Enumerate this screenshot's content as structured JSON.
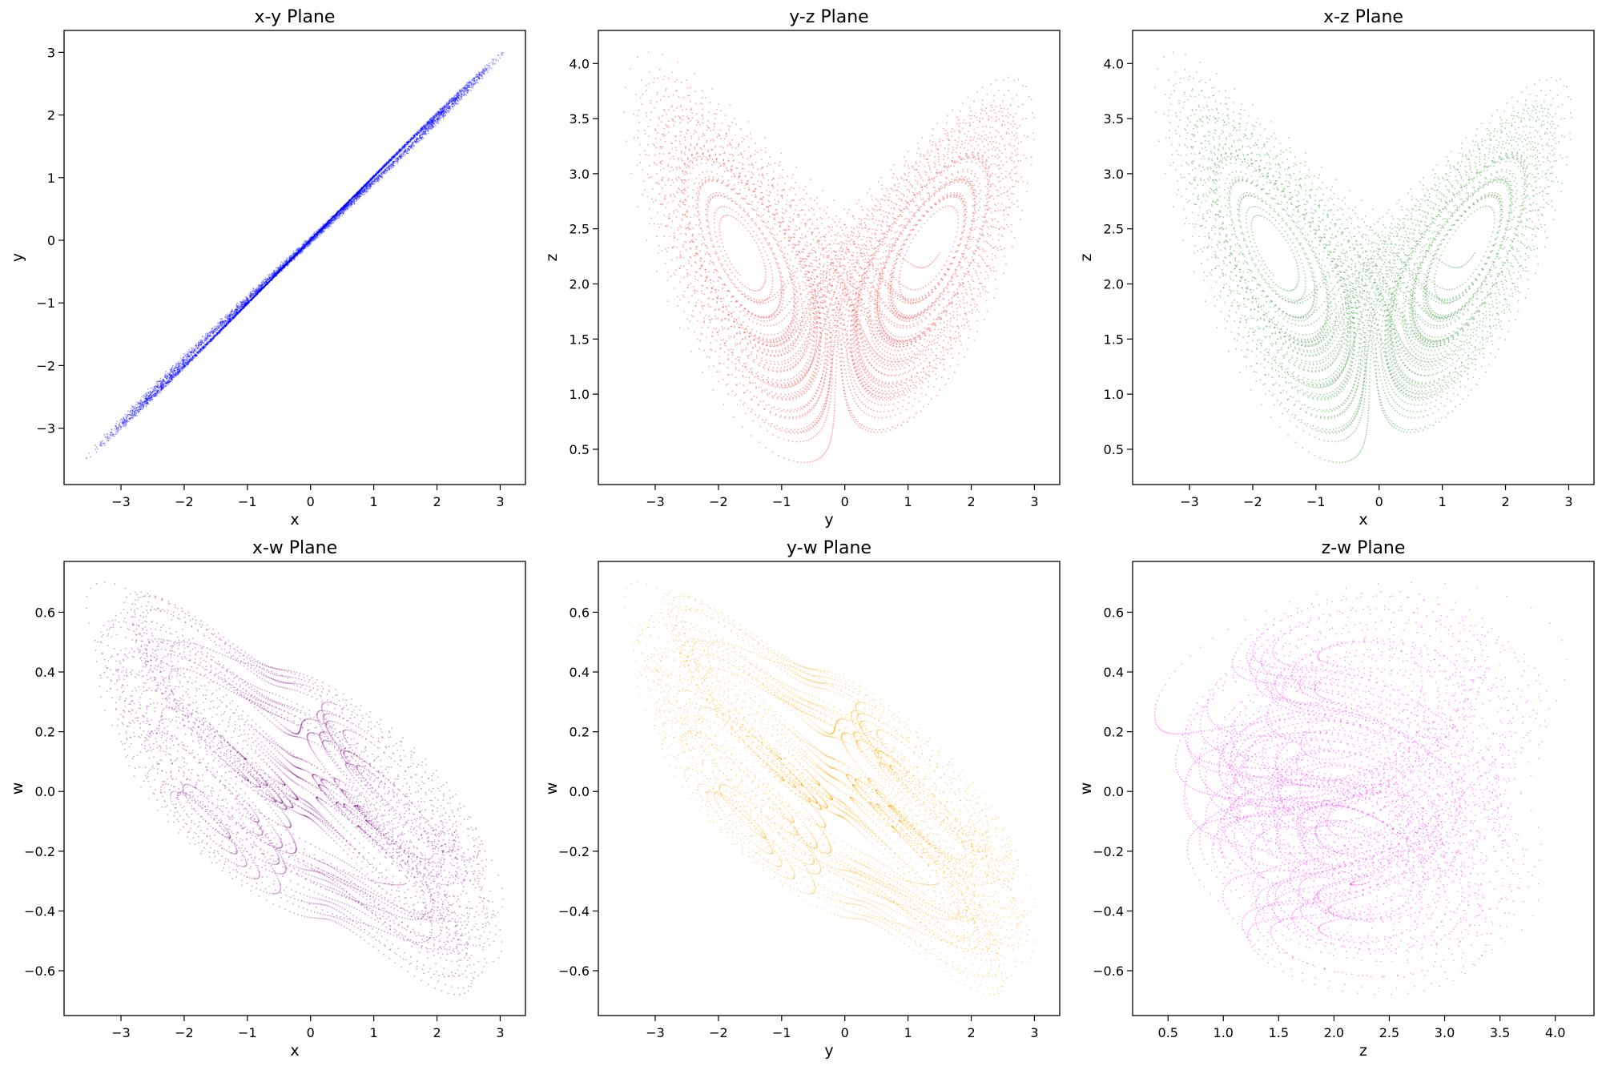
{
  "chart_data": [
    {
      "type": "scatter",
      "title": "x-y Plane",
      "xlabel": "x",
      "ylabel": "y",
      "xlim": [
        -3.9,
        3.4
      ],
      "ylim": [
        -3.9,
        3.35
      ],
      "xticks": [
        -3,
        -2,
        -1,
        0,
        1,
        2,
        3
      ],
      "yticks": [
        -3,
        -2,
        -1,
        0,
        1,
        2,
        3
      ],
      "grid": false,
      "color": "#0000ff",
      "attractor": {
        "x": "x",
        "y": "y"
      }
    },
    {
      "type": "scatter",
      "title": "y-z Plane",
      "xlabel": "y",
      "ylabel": "z",
      "xlim": [
        -3.9,
        3.4
      ],
      "ylim": [
        0.18,
        4.3
      ],
      "xticks": [
        -3,
        -2,
        -1,
        0,
        1,
        2,
        3
      ],
      "yticks": [
        0.5,
        1.0,
        1.5,
        2.0,
        2.5,
        3.0,
        3.5,
        4.0
      ],
      "grid": false,
      "color": "#ff0000",
      "attractor": {
        "x": "y",
        "y": "z"
      }
    },
    {
      "type": "scatter",
      "title": "x-z Plane",
      "xlabel": "x",
      "ylabel": "z",
      "xlim": [
        -3.9,
        3.4
      ],
      "ylim": [
        0.18,
        4.3
      ],
      "xticks": [
        -3,
        -2,
        -1,
        0,
        1,
        2,
        3
      ],
      "yticks": [
        0.5,
        1.0,
        1.5,
        2.0,
        2.5,
        3.0,
        3.5,
        4.0
      ],
      "grid": false,
      "color": "#008000",
      "attractor": {
        "x": "x",
        "y": "z"
      }
    },
    {
      "type": "scatter",
      "title": "x-w Plane",
      "xlabel": "x",
      "ylabel": "w",
      "xlim": [
        -3.9,
        3.4
      ],
      "ylim": [
        -0.75,
        0.77
      ],
      "xticks": [
        -3,
        -2,
        -1,
        0,
        1,
        2,
        3
      ],
      "yticks": [
        -0.6,
        -0.4,
        -0.2,
        0.0,
        0.2,
        0.4,
        0.6
      ],
      "grid": false,
      "color": "#800080",
      "attractor": {
        "x": "x",
        "y": "w"
      }
    },
    {
      "type": "scatter",
      "title": "y-w Plane",
      "xlabel": "y",
      "ylabel": "w",
      "xlim": [
        -3.9,
        3.4
      ],
      "ylim": [
        -0.75,
        0.77
      ],
      "xticks": [
        -3,
        -2,
        -1,
        0,
        1,
        2,
        3
      ],
      "yticks": [
        -0.6,
        -0.4,
        -0.2,
        0.0,
        0.2,
        0.4,
        0.6
      ],
      "grid": false,
      "color": "#ffa500",
      "attractor": {
        "x": "y",
        "y": "w"
      }
    },
    {
      "type": "scatter",
      "title": "z-w Plane",
      "xlabel": "z",
      "ylabel": "w",
      "xlim": [
        0.18,
        4.35
      ],
      "ylim": [
        -0.75,
        0.77
      ],
      "xticks": [
        0.5,
        1.0,
        1.5,
        2.0,
        2.5,
        3.0,
        3.5,
        4.0
      ],
      "yticks": [
        -0.6,
        -0.4,
        -0.2,
        0.0,
        0.2,
        0.4,
        0.6
      ],
      "grid": false,
      "color": "#ff00ff",
      "attractor": {
        "x": "z",
        "y": "w"
      }
    }
  ]
}
